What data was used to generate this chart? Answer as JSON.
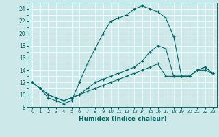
{
  "xlabel": "Humidex (Indice chaleur)",
  "ylabel": "",
  "xlim": [
    -0.5,
    23.5
  ],
  "ylim": [
    8,
    25
  ],
  "xticks": [
    0,
    1,
    2,
    3,
    4,
    5,
    6,
    7,
    8,
    9,
    10,
    11,
    12,
    13,
    14,
    15,
    16,
    17,
    18,
    19,
    20,
    21,
    22,
    23
  ],
  "yticks": [
    8,
    10,
    12,
    14,
    16,
    18,
    20,
    22,
    24
  ],
  "bg_color": "#cce8e8",
  "line_color": "#006868",
  "curve1_x": [
    0,
    1,
    2,
    3,
    4,
    5,
    6,
    7,
    8,
    9,
    10,
    11,
    12,
    13,
    14,
    15,
    16,
    17,
    18,
    19,
    20,
    21,
    22,
    23
  ],
  "curve1_y": [
    12,
    11,
    9.5,
    9,
    8.5,
    9,
    12,
    15,
    17.5,
    20,
    22,
    22.5,
    23,
    24,
    24.5,
    24,
    23.5,
    22.5,
    19.5,
    13,
    13,
    14,
    14,
    13.5
  ],
  "curve2_x": [
    0,
    1,
    2,
    3,
    4,
    5,
    6,
    7,
    8,
    9,
    10,
    11,
    12,
    13,
    14,
    15,
    16,
    17,
    18,
    19,
    20,
    21,
    22,
    23
  ],
  "curve2_y": [
    12,
    11,
    10,
    9.5,
    9,
    9.5,
    10,
    11,
    12,
    12.5,
    13,
    13.5,
    14,
    14.5,
    15.5,
    17,
    18,
    17.5,
    13,
    13,
    13,
    14,
    14.5,
    13.5
  ],
  "curve3_x": [
    0,
    1,
    2,
    3,
    4,
    5,
    6,
    7,
    8,
    9,
    10,
    11,
    12,
    13,
    14,
    15,
    16,
    17,
    18,
    19,
    20,
    21,
    22,
    23
  ],
  "curve3_y": [
    12,
    11,
    10,
    9.5,
    9,
    9.5,
    10,
    10.5,
    11,
    11.5,
    12,
    12.5,
    13,
    13.5,
    14,
    14.5,
    15,
    13,
    13,
    13,
    13,
    14,
    14.5,
    13.5
  ]
}
